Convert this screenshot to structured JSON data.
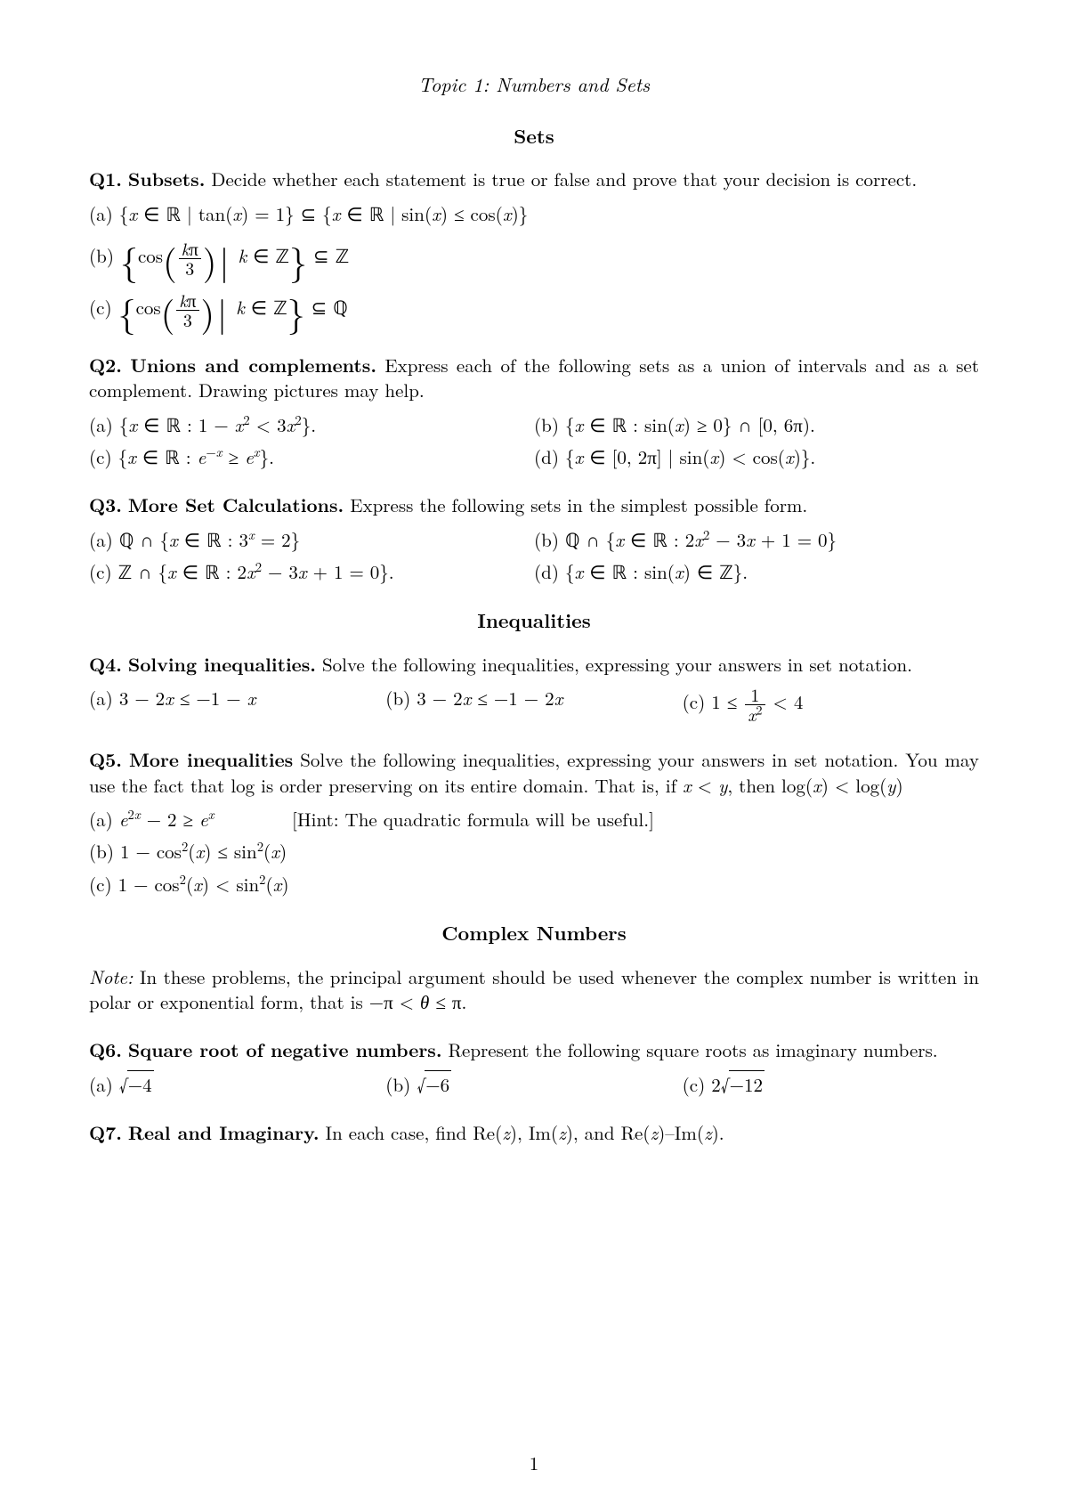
{
  "topic_line": "Topic 1: Numbers and Sets",
  "section1": "Sets",
  "q1": {
    "label": "Q1.",
    "title": "Subsets.",
    "prompt": "Decide whether each statement is true or false and prove that your decision is correct."
  },
  "q2": {
    "label": "Q2.",
    "title": "Unions and complements.",
    "prompt": "Express each of the following sets as a union of intervals and as a set complement. Drawing pictures may help."
  },
  "q3": {
    "label": "Q3.",
    "title": "More Set Calculations.",
    "prompt": "Express the following sets in the simplest possible form."
  },
  "section2": "Inequalities",
  "q4": {
    "label": "Q4.",
    "title": "Solving inequalities.",
    "prompt": "Solve the following inequalities, expressing your answers in set notation."
  },
  "q5": {
    "label": "Q5.",
    "title": "More inequalities",
    "prompt": "Solve the following inequalities, expressing your answers in set notation. You may use the fact that log is order preserving on its entire domain. That is, if",
    "prompt2": "then log(",
    "prompt3": ") < log(",
    "prompt4": ")",
    "hint": "[Hint: The quadratic formula will be useful.]"
  },
  "section3": "Complex Numbers",
  "note_label": "Note:",
  "note_text": "In these problems, the principal argument should be used whenever the complex number is written in polar or exponential form, that is",
  "q6": {
    "label": "Q6.",
    "title": "Square root of negative numbers.",
    "prompt": "Represent the following square roots as imaginary numbers."
  },
  "q7": {
    "label": "Q7.",
    "title": "Real and Imaginary.",
    "prompt": "In each case, find Re(",
    "prompt2": "), Im(",
    "prompt3": "), and Re(",
    "prompt4": ")–Im(",
    "prompt5": ")."
  },
  "pagenum": "1"
}
